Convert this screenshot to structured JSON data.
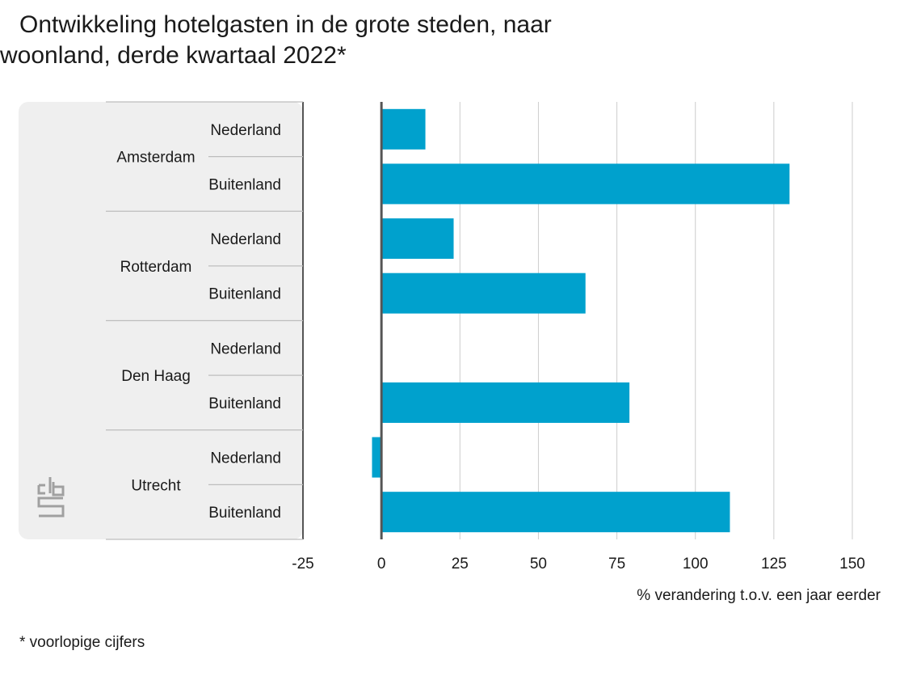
{
  "title_line1": "Ontwikkeling hotelgasten in de grote steden, naar",
  "title_line2": "woonland, derde kwartaal 2022*",
  "footnote": "* voorlopige cijfers",
  "colors": {
    "bar": "#00a1cd",
    "panel": "#efefef",
    "grid": "#cccccc",
    "axis": "#555555",
    "logo": "#a0a0a0"
  },
  "logo": {
    "name": "cbs-logo"
  },
  "chart_data": {
    "type": "bar",
    "orientation": "horizontal",
    "title": "Ontwikkeling hotelgasten in de grote steden, naar woonland, derde kwartaal 2022*",
    "xlabel": "% verandering t.o.v. een jaar eerder",
    "xlim": [
      -25,
      150
    ],
    "xticks": [
      -25,
      0,
      25,
      50,
      75,
      100,
      125,
      150
    ],
    "grid": true,
    "legend": "none",
    "groups": [
      {
        "name": "Amsterdam",
        "items": [
          {
            "label": "Nederland",
            "value": 14
          },
          {
            "label": "Buitenland",
            "value": 130
          }
        ]
      },
      {
        "name": "Rotterdam",
        "items": [
          {
            "label": "Nederland",
            "value": 23
          },
          {
            "label": "Buitenland",
            "value": 65
          }
        ]
      },
      {
        "name": "Den Haag",
        "items": [
          {
            "label": "Nederland",
            "value": 0
          },
          {
            "label": "Buitenland",
            "value": 79
          }
        ]
      },
      {
        "name": "Utrecht",
        "items": [
          {
            "label": "Nederland",
            "value": -3
          },
          {
            "label": "Buitenland",
            "value": 111
          }
        ]
      }
    ]
  }
}
